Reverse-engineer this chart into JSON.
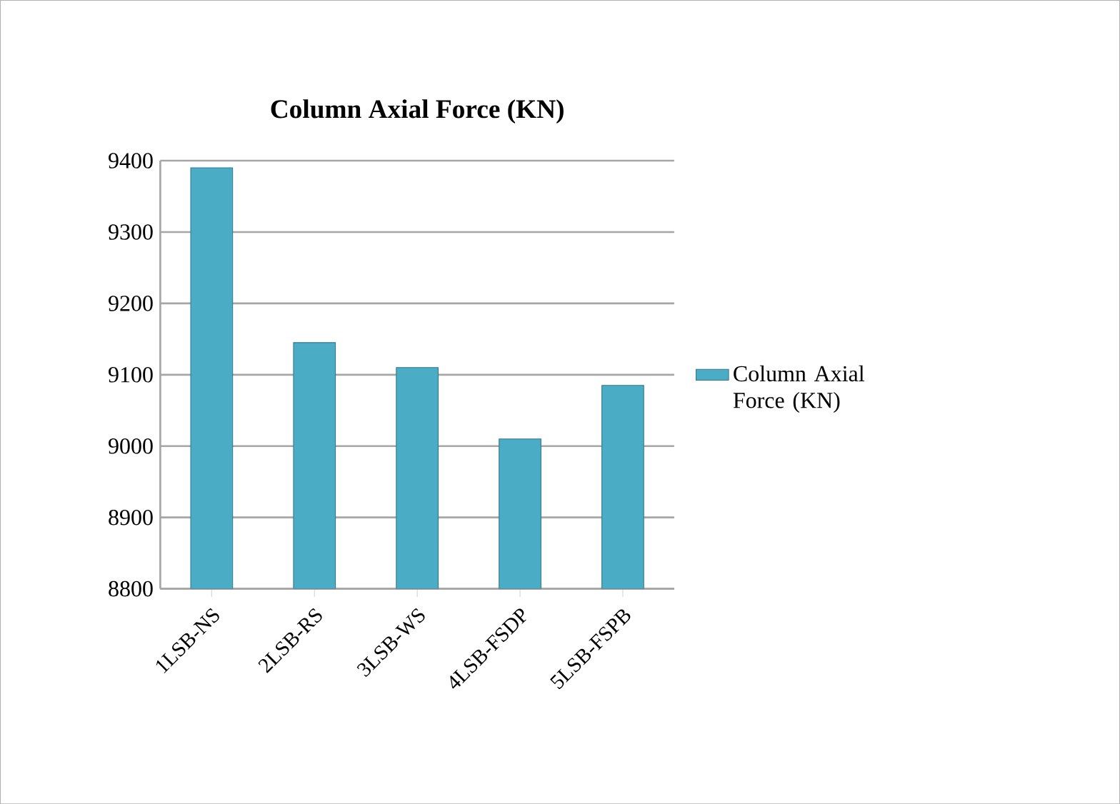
{
  "chart_data": {
    "type": "bar",
    "title": "Column Axial Force (KN)",
    "categories": [
      "1LSB-NS",
      "2LSB-RS",
      "3LSB-WS",
      "4LSB-FSDP",
      "5LSB-FSPB"
    ],
    "series": [
      {
        "name": "Column Axial Force (KN)",
        "color": "#4bacc6",
        "values": [
          9390,
          9145,
          9110,
          9010,
          9085
        ]
      }
    ],
    "ylim": [
      8800,
      9400
    ],
    "yticks": [
      8800,
      8900,
      9000,
      9100,
      9200,
      9300,
      9400
    ],
    "grid": "y",
    "legend": "right"
  }
}
